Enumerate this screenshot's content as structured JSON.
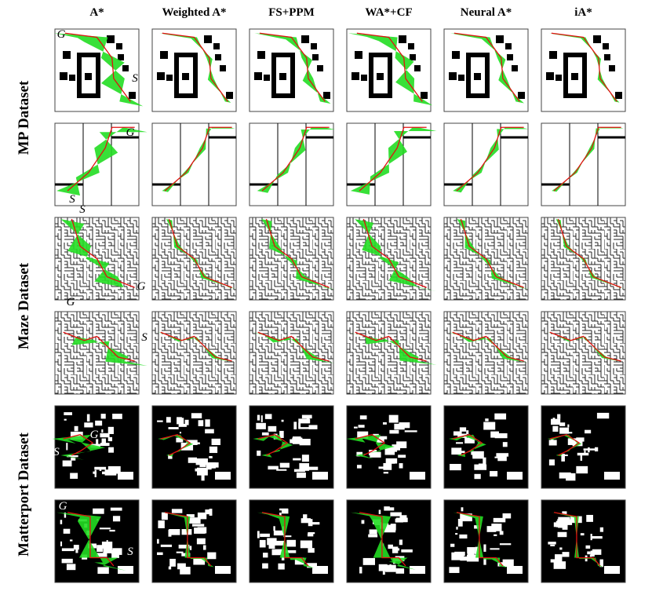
{
  "columns": [
    "A*",
    "Weighted A*",
    "FS+PPM",
    "WA*+CF",
    "Neural A*",
    "iA*"
  ],
  "datasets": [
    "MP Dataset",
    "Maze Dataset",
    "Matterport Dataset"
  ],
  "markers": [
    {
      "goal": "G",
      "start": "S"
    },
    {
      "goal": "G",
      "start": "S"
    },
    {
      "goal": "G",
      "start": "S"
    },
    {
      "goal": "G",
      "start": "S"
    },
    {
      "goal": "G",
      "start": "S"
    },
    {
      "goal": "G",
      "start": "S"
    }
  ]
}
